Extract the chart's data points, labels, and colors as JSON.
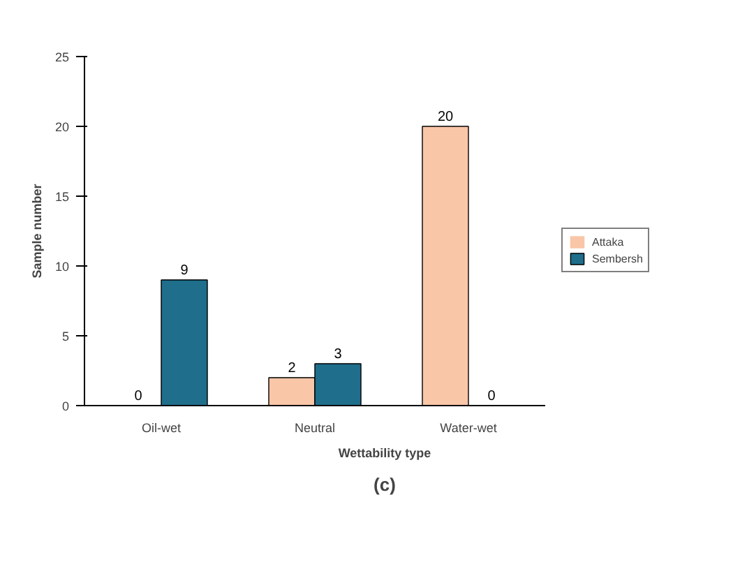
{
  "chart_data": {
    "type": "bar",
    "xlabel": "Wettability type",
    "ylabel": "Sample number",
    "categories": [
      "Oil-wet",
      "Neutral",
      "Water-wet"
    ],
    "series": [
      {
        "name": "Attaka",
        "color": "#f9c6a8",
        "values": [
          0,
          2,
          20
        ]
      },
      {
        "name": "Sembersh",
        "color": "#1f6e8c",
        "values": [
          9,
          3,
          0
        ]
      }
    ],
    "ylim": [
      0,
      25
    ],
    "yticks": [
      0,
      5,
      10,
      15,
      20,
      25
    ],
    "grid": false,
    "legend": "right",
    "data_labels": true,
    "annotations": [
      "(c)"
    ]
  }
}
